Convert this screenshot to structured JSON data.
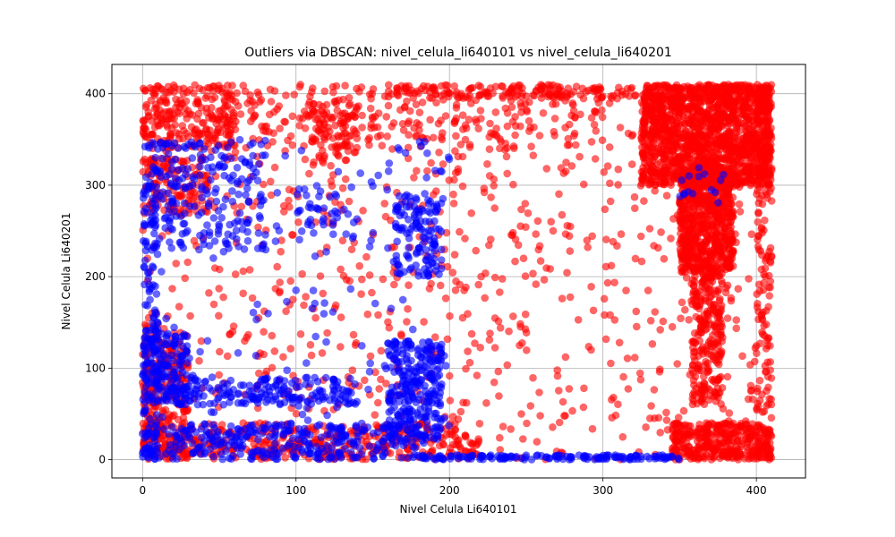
{
  "chart_data": {
    "type": "scatter",
    "title": "Outliers via DBSCAN: nivel_celula_li640101 vs nivel_celula_li640201",
    "xlabel": "Nivel Celula Li640101",
    "ylabel": "Nivel Celula Li640201",
    "xlim": [
      -20,
      432
    ],
    "ylim": [
      -20,
      432
    ],
    "xticks": [
      0,
      100,
      200,
      300,
      400
    ],
    "yticks": [
      0,
      100,
      200,
      300,
      400
    ],
    "grid": true,
    "legend": "none",
    "marker_alpha": 0.6,
    "series": [
      {
        "color": "#ff0000",
        "clusters": [
          {
            "x": [
              325,
              410
            ],
            "y": [
              300,
              410
            ],
            "n": 1500
          },
          {
            "x": [
              350,
              385
            ],
            "y": [
              205,
              320
            ],
            "n": 700
          },
          {
            "x": [
              358,
              378
            ],
            "y": [
              60,
              210
            ],
            "n": 250
          },
          {
            "x": [
              345,
              410
            ],
            "y": [
              0,
              40
            ],
            "n": 350
          },
          {
            "x": [
              0,
              60
            ],
            "y": [
              340,
              410
            ],
            "n": 220
          },
          {
            "x": [
              0,
              45
            ],
            "y": [
              270,
              330
            ],
            "n": 120
          },
          {
            "x": [
              0,
              30
            ],
            "y": [
              0,
              140
            ],
            "n": 250
          },
          {
            "x": [
              0,
              220
            ],
            "y": [
              0,
              40
            ],
            "n": 350
          },
          {
            "x": [
              110,
              140
            ],
            "y": [
              320,
              390
            ],
            "n": 80
          },
          {
            "x": [
              60,
              300
            ],
            "y": [
              340,
              410
            ],
            "n": 220
          },
          {
            "x": [
              400,
              410
            ],
            "y": [
              0,
              410
            ],
            "n": 140
          },
          {
            "x": [
              160,
              410
            ],
            "y": [
              395,
              410
            ],
            "n": 180
          },
          {
            "x": [
              0,
              410
            ],
            "y": [
              0,
              410
            ],
            "n": 900
          }
        ]
      },
      {
        "color": "#0000ff",
        "clusters": [
          {
            "x": [
              0,
              80
            ],
            "y": [
              230,
              350
            ],
            "n": 200
          },
          {
            "x": [
              0,
              30
            ],
            "y": [
              60,
              140
            ],
            "n": 150
          },
          {
            "x": [
              0,
              180
            ],
            "y": [
              0,
              40
            ],
            "n": 300
          },
          {
            "x": [
              20,
              140
            ],
            "y": [
              60,
              90
            ],
            "n": 180
          },
          {
            "x": [
              160,
              195
            ],
            "y": [
              20,
              130
            ],
            "n": 280
          },
          {
            "x": [
              165,
              195
            ],
            "y": [
              200,
              290
            ],
            "n": 120
          },
          {
            "x": [
              0,
              10
            ],
            "y": [
              0,
              320
            ],
            "n": 120
          },
          {
            "x": [
              100,
              140
            ],
            "y": [
              240,
              300
            ],
            "n": 40
          },
          {
            "x": [
              180,
              350
            ],
            "y": [
              0,
              5
            ],
            "n": 150
          },
          {
            "x": [
              0,
              200
            ],
            "y": [
              0,
              350
            ],
            "n": 200
          },
          {
            "x": [
              350,
              380
            ],
            "y": [
              270,
              320
            ],
            "n": 15
          }
        ]
      }
    ]
  }
}
